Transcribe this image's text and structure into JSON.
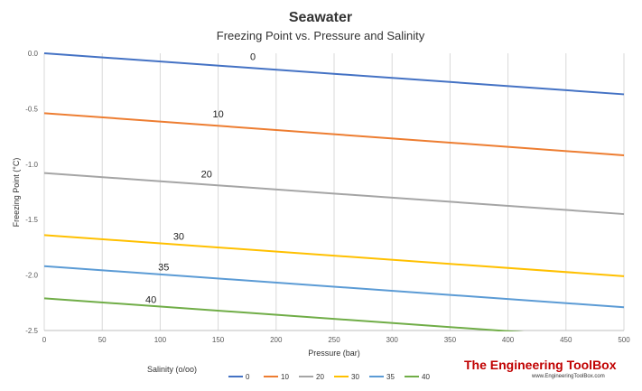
{
  "chart_data": {
    "type": "line",
    "title": "Seawater",
    "subtitle": "Freezing Point vs. Pressure and Salinity",
    "xlabel": "Pressure (bar)",
    "ylabel": "Freezing Point (°C)",
    "xlim": [
      0,
      500
    ],
    "ylim": [
      -2.5,
      0
    ],
    "xticks": [
      0,
      50,
      100,
      150,
      200,
      250,
      300,
      350,
      400,
      450,
      500
    ],
    "yticks": [
      "0.0",
      "-0.5",
      "-1.0",
      "-1.5",
      "-2.0",
      "-2.5"
    ],
    "grid": "vertical",
    "legend_title": "Salinity (o/oo)",
    "legend_position": "bottom-left",
    "x": [
      0,
      500
    ],
    "series": [
      {
        "name": "0",
        "color": "#4472c4",
        "values": [
          0.0,
          -0.37
        ],
        "label": "0",
        "label_at": [
          180,
          -0.06
        ]
      },
      {
        "name": "10",
        "color": "#ed7d31",
        "values": [
          -0.54,
          -0.92
        ],
        "label": "10",
        "label_at": [
          150,
          -0.58
        ]
      },
      {
        "name": "20",
        "color": "#a5a5a5",
        "values": [
          -1.08,
          -1.45
        ],
        "label": "20",
        "label_at": [
          140,
          -1.12
        ]
      },
      {
        "name": "30",
        "color": "#ffc000",
        "values": [
          -1.64,
          -2.01
        ],
        "label": "30",
        "label_at": [
          116,
          -1.68
        ]
      },
      {
        "name": "35",
        "color": "#5b9bd5",
        "values": [
          -1.92,
          -2.29
        ],
        "label": "35",
        "label_at": [
          103,
          -1.96
        ]
      },
      {
        "name": "40",
        "color": "#70ad47",
        "values": [
          -2.21,
          -2.58
        ],
        "label": "40",
        "label_at": [
          92,
          -2.25
        ]
      }
    ]
  },
  "branding": {
    "name": "The Engineering ToolBox",
    "url": "www.EngineeringToolBox.com"
  }
}
